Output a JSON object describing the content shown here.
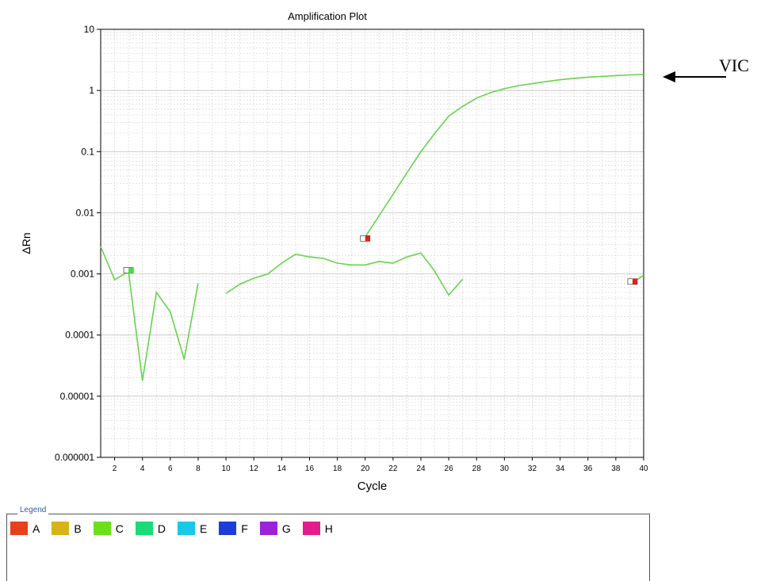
{
  "chart_data": {
    "type": "line",
    "title": "Amplification Plot",
    "xlabel": "Cycle",
    "ylabel": "ΔRn",
    "xlim": [
      1,
      40
    ],
    "ylim": [
      1e-06,
      10
    ],
    "yscale": "log",
    "grid": true,
    "x_ticks": [
      "2",
      "4",
      "6",
      "8",
      "10",
      "12",
      "14",
      "16",
      "18",
      "20",
      "22",
      "24",
      "26",
      "28",
      "30",
      "32",
      "34",
      "36",
      "38",
      "40"
    ],
    "y_ticks": [
      "0.000001",
      "0.00001",
      "0.0001",
      "0.001",
      "0.01",
      "0.1",
      "1",
      "10"
    ],
    "y_tick_values": [
      1e-06,
      1e-05,
      0.0001,
      0.001,
      0.01,
      0.1,
      1,
      10
    ],
    "series": [
      {
        "color": "#66d44a",
        "segments": [
          {
            "x": [
              1,
              2,
              3,
              4,
              5,
              6,
              7,
              8
            ],
            "y": [
              0.0028,
              0.0008,
              0.0011,
              1.8e-05,
              0.0005,
              0.00024,
              4e-05,
              0.0007
            ]
          },
          {
            "x": [
              10,
              11,
              12,
              13,
              14,
              15,
              16,
              17,
              18,
              19,
              20,
              21,
              22,
              23,
              24,
              25,
              26,
              27
            ],
            "y": [
              0.00048,
              0.00068,
              0.00085,
              0.001,
              0.0015,
              0.0021,
              0.0019,
              0.0018,
              0.0015,
              0.0014,
              0.0014,
              0.0016,
              0.0015,
              0.0019,
              0.0022,
              0.0011,
              0.00045,
              0.00082
            ]
          },
          {
            "x": [
              20,
              21,
              22,
              23,
              24,
              25,
              26,
              27,
              28,
              29,
              30,
              31,
              32,
              33,
              34,
              35,
              36,
              37,
              38,
              39,
              40
            ],
            "y": [
              0.004,
              0.009,
              0.02,
              0.045,
              0.1,
              0.2,
              0.38,
              0.55,
              0.75,
              0.92,
              1.07,
              1.2,
              1.3,
              1.4,
              1.5,
              1.58,
              1.65,
              1.7,
              1.75,
              1.8,
              1.82
            ]
          },
          {
            "x": [
              39.5,
              40
            ],
            "y": [
              0.0008,
              0.00095
            ]
          }
        ]
      }
    ],
    "markers": [
      {
        "x": 3,
        "y": 0.00115,
        "color": "#44dd44"
      },
      {
        "x": 20,
        "y": 0.0038,
        "color": "#e02020"
      },
      {
        "x": 39.2,
        "y": 0.00075,
        "color": "#e02020"
      }
    ],
    "annotation": {
      "text": "VIC",
      "points_to": {
        "x": 40,
        "y": 1.8
      }
    }
  },
  "legend": {
    "title": "Legend",
    "items": [
      {
        "label": "A",
        "color": "#e8401c"
      },
      {
        "label": "B",
        "color": "#d6b418"
      },
      {
        "label": "C",
        "color": "#6ae01a"
      },
      {
        "label": "D",
        "color": "#1adc74"
      },
      {
        "label": "E",
        "color": "#1ac8e8"
      },
      {
        "label": "F",
        "color": "#1c3cdc"
      },
      {
        "label": "G",
        "color": "#9c20dc"
      },
      {
        "label": "H",
        "color": "#e41c8c"
      }
    ]
  }
}
